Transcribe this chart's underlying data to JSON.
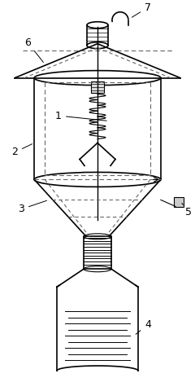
{
  "bg_color": "#ffffff",
  "line_color": "#000000",
  "dashed_color": "#666666",
  "label_color": "#000000",
  "figsize": [
    2.4,
    4.8
  ],
  "dpi": 100
}
